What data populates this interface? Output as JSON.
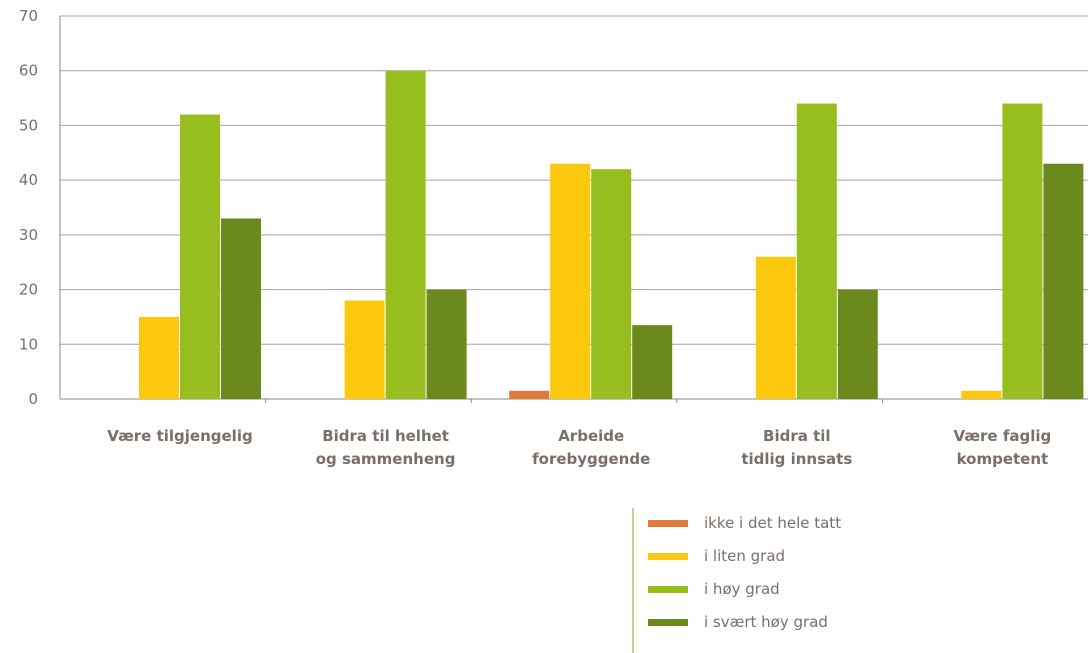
{
  "chart_data": {
    "type": "bar",
    "categories": [
      [
        "Være tilgjengelig"
      ],
      [
        "Bidra til helhet",
        "og sammenheng"
      ],
      [
        "Arbeide",
        "forebyggende"
      ],
      [
        "Bidra til",
        "tidlig innsats"
      ],
      [
        "Være faglig",
        "kompetent"
      ]
    ],
    "series": [
      {
        "name": "ikke i det hele tatt",
        "color": "#e07b39",
        "values": [
          0,
          0,
          1.5,
          0,
          0
        ]
      },
      {
        "name": "i liten grad",
        "color": "#fcc80e",
        "values": [
          15,
          18,
          43,
          26,
          1.5
        ]
      },
      {
        "name": "i høy grad",
        "color": "#96be1e",
        "values": [
          52,
          60,
          42,
          54,
          54
        ]
      },
      {
        "name": "i svært høy grad",
        "color": "#6b8a1e",
        "values": [
          33,
          20,
          13.5,
          20,
          43
        ]
      }
    ],
    "yticks": [
      "0",
      "10",
      "20",
      "30",
      "40",
      "50",
      "60",
      "70"
    ],
    "ylim": [
      0,
      70
    ],
    "grid": true,
    "legend_position": "bottom-right"
  }
}
